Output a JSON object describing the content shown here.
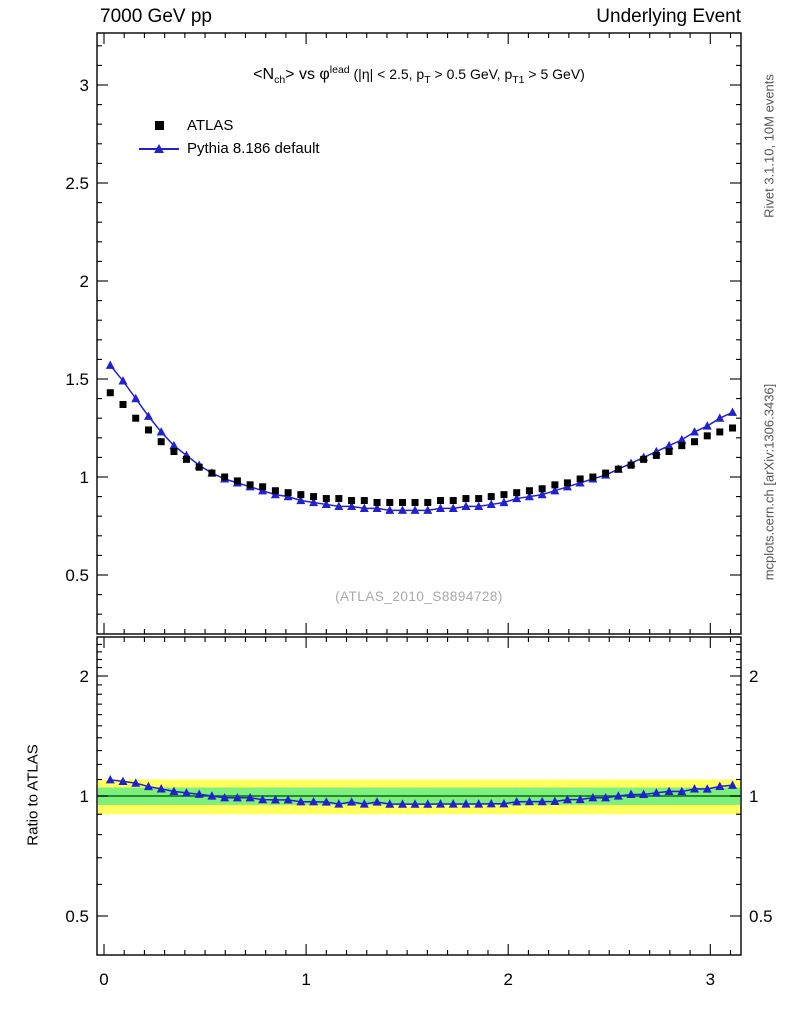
{
  "header": {
    "left": "7000 GeV pp",
    "right": "Underlying Event"
  },
  "side_labels": {
    "right_top": "Rivet 3.1.10, 10M events",
    "right_bottom": "mcplots.cern.ch [arXiv:1306.3436]",
    "ratio_ylabel": "Ratio to ATLAS",
    "watermark": "(ATLAS_2010_S8894728)"
  },
  "title_segments": [
    {
      "t": "<N",
      "cls": ""
    },
    {
      "t": "ch",
      "cls": "t-sub"
    },
    {
      "t": "> vs ",
      "cls": ""
    },
    {
      "t": "φ",
      "cls": ""
    },
    {
      "t": "lead",
      "cls": "t-sup"
    },
    {
      "t": " (|η| < 2.5, p",
      "cls": "t-small"
    },
    {
      "t": "T",
      "cls": "t-small t-sub"
    },
    {
      "t": " > 0.5 GeV, p",
      "cls": "t-small"
    },
    {
      "t": "T1",
      "cls": "t-small t-sub"
    },
    {
      "t": " > 5 GeV)",
      "cls": "t-small"
    }
  ],
  "legend": [
    {
      "label": "ATLAS",
      "marker": "square",
      "color": "#000000"
    },
    {
      "label": "Pythia 8.186 default",
      "marker": "triangle-line",
      "color": "#2222cc"
    }
  ],
  "chart_data": {
    "type": "scatter",
    "title": "<N_ch> vs φ^lead (|η| < 2.5, p_T > 0.5 GeV, p_T1 > 5 GeV)",
    "xlabel": "",
    "xlim": [
      -0.035,
      3.155
    ],
    "xticks": [
      0,
      1,
      2,
      3
    ],
    "panels": [
      {
        "name": "main",
        "yscale": "linear",
        "ylim": [
          0.2,
          3.27
        ],
        "yticks": [
          0.5,
          1,
          1.5,
          2,
          2.5,
          3
        ]
      },
      {
        "name": "ratio",
        "yscale": "log",
        "ylim": [
          0.4,
          2.5
        ],
        "yticks": [
          0.5,
          1,
          2
        ],
        "ref_line": 1,
        "ref_line_color": "#0b6b0b",
        "bands": [
          {
            "range": [
              0.9,
              1.1
            ],
            "color": "#ffff5e"
          },
          {
            "range": [
              0.95,
              1.05
            ],
            "color": "#7cef7c"
          }
        ]
      }
    ],
    "x": [
      0.031,
      0.094,
      0.157,
      0.22,
      0.283,
      0.346,
      0.408,
      0.471,
      0.534,
      0.597,
      0.66,
      0.723,
      0.785,
      0.848,
      0.911,
      0.974,
      1.037,
      1.1,
      1.162,
      1.225,
      1.288,
      1.351,
      1.414,
      1.477,
      1.539,
      1.602,
      1.665,
      1.728,
      1.791,
      1.854,
      1.916,
      1.979,
      2.042,
      2.105,
      2.168,
      2.231,
      2.293,
      2.356,
      2.419,
      2.482,
      2.545,
      2.608,
      2.67,
      2.733,
      2.796,
      2.859,
      2.922,
      2.985,
      3.047,
      3.11
    ],
    "series": [
      {
        "name": "ATLAS",
        "marker": "square",
        "color": "#000000",
        "line": false,
        "values": [
          1.43,
          1.37,
          1.3,
          1.24,
          1.18,
          1.13,
          1.09,
          1.05,
          1.02,
          1.0,
          0.98,
          0.96,
          0.95,
          0.93,
          0.92,
          0.91,
          0.9,
          0.89,
          0.89,
          0.88,
          0.88,
          0.87,
          0.87,
          0.87,
          0.87,
          0.87,
          0.88,
          0.88,
          0.89,
          0.89,
          0.9,
          0.91,
          0.92,
          0.93,
          0.94,
          0.96,
          0.97,
          0.99,
          1.0,
          1.02,
          1.04,
          1.06,
          1.09,
          1.11,
          1.13,
          1.16,
          1.18,
          1.21,
          1.23,
          1.25
        ]
      },
      {
        "name": "Pythia 8.186 default",
        "marker": "triangle",
        "color": "#2222cc",
        "line": true,
        "values": [
          1.57,
          1.49,
          1.4,
          1.31,
          1.23,
          1.16,
          1.11,
          1.06,
          1.02,
          0.99,
          0.97,
          0.95,
          0.93,
          0.91,
          0.9,
          0.88,
          0.87,
          0.86,
          0.85,
          0.85,
          0.84,
          0.84,
          0.83,
          0.83,
          0.83,
          0.83,
          0.84,
          0.84,
          0.85,
          0.85,
          0.86,
          0.87,
          0.89,
          0.9,
          0.91,
          0.93,
          0.95,
          0.97,
          0.99,
          1.01,
          1.04,
          1.07,
          1.1,
          1.13,
          1.16,
          1.19,
          1.23,
          1.26,
          1.3,
          1.33
        ]
      }
    ],
    "ratio_series": {
      "name": "Pythia 8.186 default / ATLAS",
      "marker": "triangle",
      "color": "#2222cc",
      "line": true,
      "values": [
        1.098,
        1.088,
        1.077,
        1.056,
        1.042,
        1.027,
        1.018,
        1.01,
        1.0,
        0.99,
        0.99,
        0.99,
        0.979,
        0.978,
        0.978,
        0.967,
        0.967,
        0.966,
        0.955,
        0.966,
        0.955,
        0.966,
        0.954,
        0.954,
        0.954,
        0.954,
        0.955,
        0.955,
        0.955,
        0.955,
        0.956,
        0.956,
        0.967,
        0.968,
        0.968,
        0.969,
        0.979,
        0.98,
        0.99,
        0.99,
        1.0,
        1.009,
        1.009,
        1.018,
        1.027,
        1.026,
        1.042,
        1.041,
        1.057,
        1.064
      ]
    }
  }
}
